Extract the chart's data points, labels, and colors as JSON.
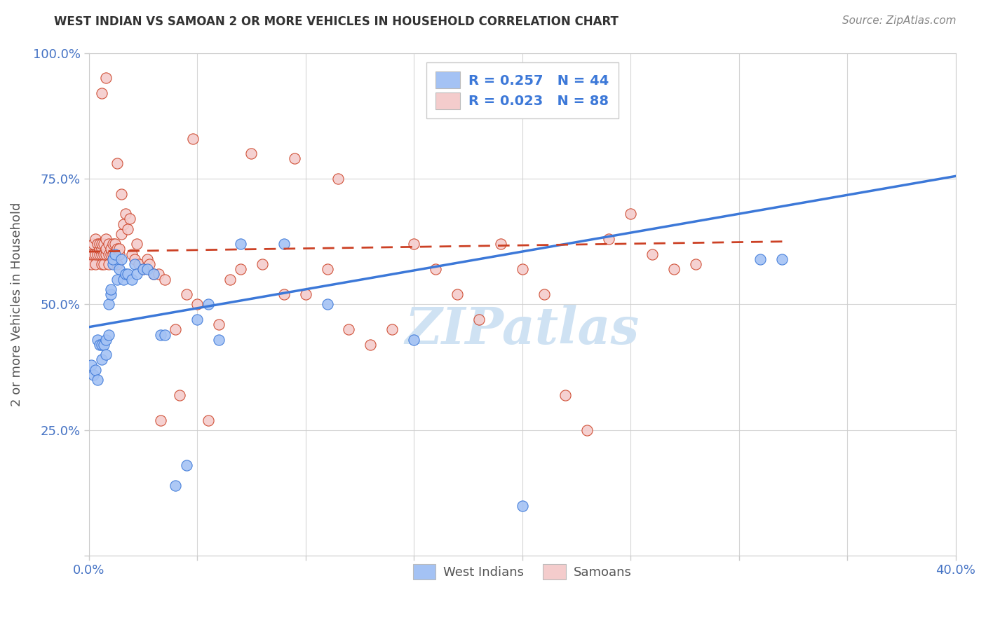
{
  "title": "WEST INDIAN VS SAMOAN 2 OR MORE VEHICLES IN HOUSEHOLD CORRELATION CHART",
  "source": "Source: ZipAtlas.com",
  "ylabel": "2 or more Vehicles in Household",
  "x_min": 0.0,
  "x_max": 0.4,
  "y_min": 0.0,
  "y_max": 1.0,
  "x_tick_positions": [
    0.0,
    0.05,
    0.1,
    0.15,
    0.2,
    0.25,
    0.3,
    0.35,
    0.4
  ],
  "x_tick_labels": [
    "0.0%",
    "",
    "",
    "",
    "",
    "",
    "",
    "",
    "40.0%"
  ],
  "y_tick_positions": [
    0.0,
    0.25,
    0.5,
    0.75,
    1.0
  ],
  "y_tick_labels": [
    "",
    "25.0%",
    "50.0%",
    "75.0%",
    "100.0%"
  ],
  "legend1_label": "R = 0.257   N = 44",
  "legend2_label": "R = 0.023   N = 88",
  "color_west_indian": "#a4c2f4",
  "color_samoan": "#f4cccc",
  "color_line_west_indian": "#3c78d8",
  "color_line_samoan": "#cc4125",
  "wi_line_x0": 0.0,
  "wi_line_y0": 0.455,
  "wi_line_x1": 0.4,
  "wi_line_y1": 0.755,
  "sa_line_x0": 0.0,
  "sa_line_x1": 0.32,
  "sa_line_y0": 0.605,
  "sa_line_y1": 0.625,
  "watermark_text": "ZIPatlas",
  "watermark_color": "#cfe2f3",
  "west_indian_x": [
    0.001,
    0.002,
    0.003,
    0.004,
    0.004,
    0.005,
    0.006,
    0.006,
    0.007,
    0.008,
    0.008,
    0.009,
    0.009,
    0.01,
    0.01,
    0.011,
    0.011,
    0.012,
    0.013,
    0.014,
    0.015,
    0.016,
    0.017,
    0.018,
    0.02,
    0.021,
    0.022,
    0.025,
    0.027,
    0.03,
    0.033,
    0.035,
    0.04,
    0.045,
    0.05,
    0.055,
    0.06,
    0.07,
    0.09,
    0.11,
    0.15,
    0.2,
    0.31,
    0.32
  ],
  "west_indian_y": [
    0.38,
    0.36,
    0.37,
    0.43,
    0.35,
    0.42,
    0.42,
    0.39,
    0.42,
    0.4,
    0.43,
    0.44,
    0.5,
    0.52,
    0.53,
    0.58,
    0.59,
    0.6,
    0.55,
    0.57,
    0.59,
    0.55,
    0.56,
    0.56,
    0.55,
    0.58,
    0.56,
    0.57,
    0.57,
    0.56,
    0.44,
    0.44,
    0.14,
    0.18,
    0.47,
    0.5,
    0.43,
    0.62,
    0.62,
    0.5,
    0.43,
    0.1,
    0.59,
    0.59
  ],
  "samoan_x": [
    0.001,
    0.001,
    0.002,
    0.002,
    0.003,
    0.003,
    0.003,
    0.004,
    0.004,
    0.005,
    0.005,
    0.005,
    0.006,
    0.006,
    0.006,
    0.006,
    0.007,
    0.007,
    0.007,
    0.008,
    0.008,
    0.008,
    0.009,
    0.009,
    0.009,
    0.01,
    0.01,
    0.011,
    0.011,
    0.012,
    0.012,
    0.013,
    0.013,
    0.014,
    0.014,
    0.015,
    0.016,
    0.017,
    0.018,
    0.019,
    0.02,
    0.021,
    0.022,
    0.023,
    0.025,
    0.027,
    0.028,
    0.03,
    0.032,
    0.035,
    0.04,
    0.045,
    0.05,
    0.06,
    0.065,
    0.07,
    0.08,
    0.09,
    0.1,
    0.11,
    0.12,
    0.13,
    0.14,
    0.15,
    0.16,
    0.17,
    0.18,
    0.19,
    0.2,
    0.21,
    0.22,
    0.23,
    0.24,
    0.25,
    0.26,
    0.27,
    0.28,
    0.115,
    0.095,
    0.075,
    0.055,
    0.042,
    0.033,
    0.048,
    0.015,
    0.013,
    0.008,
    0.006
  ],
  "samoan_y": [
    0.58,
    0.6,
    0.6,
    0.62,
    0.58,
    0.6,
    0.63,
    0.6,
    0.62,
    0.6,
    0.61,
    0.62,
    0.58,
    0.6,
    0.61,
    0.62,
    0.58,
    0.6,
    0.62,
    0.6,
    0.61,
    0.63,
    0.58,
    0.6,
    0.62,
    0.6,
    0.61,
    0.6,
    0.62,
    0.6,
    0.62,
    0.58,
    0.61,
    0.6,
    0.61,
    0.64,
    0.66,
    0.68,
    0.65,
    0.67,
    0.6,
    0.59,
    0.62,
    0.58,
    0.57,
    0.59,
    0.58,
    0.56,
    0.56,
    0.55,
    0.45,
    0.52,
    0.5,
    0.46,
    0.55,
    0.57,
    0.58,
    0.52,
    0.52,
    0.57,
    0.45,
    0.42,
    0.45,
    0.62,
    0.57,
    0.52,
    0.47,
    0.62,
    0.57,
    0.52,
    0.32,
    0.25,
    0.63,
    0.68,
    0.6,
    0.57,
    0.58,
    0.75,
    0.79,
    0.8,
    0.27,
    0.32,
    0.27,
    0.83,
    0.72,
    0.78,
    0.95,
    0.92
  ]
}
